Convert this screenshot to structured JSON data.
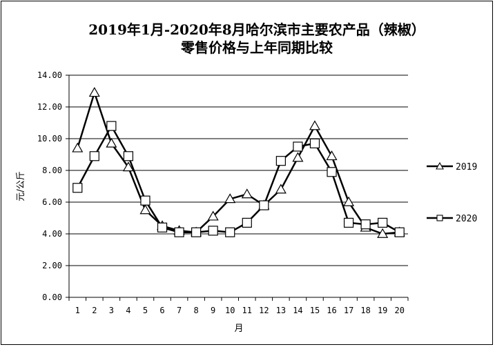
{
  "chart_data": {
    "type": "line",
    "title_line1": "2019年1月-2020年8月哈尔滨市主要农产品（辣椒）",
    "title_line2": "零售价格与上年同期比较",
    "xlabel": "月",
    "ylabel": "元/公斤",
    "x": [
      1,
      2,
      3,
      4,
      5,
      6,
      7,
      8,
      9,
      10,
      11,
      12,
      13,
      14,
      15,
      16,
      17,
      18,
      19,
      20
    ],
    "x_tick_labels": [
      "1",
      "2",
      "3",
      "4",
      "5",
      "6",
      "7",
      "8",
      "9",
      "10",
      "11",
      "12",
      "13",
      "14",
      "15",
      "16",
      "17",
      "18",
      "19",
      "20"
    ],
    "ylim": [
      0,
      14
    ],
    "y_tick_labels": [
      "0.00",
      "2.00",
      "4.00",
      "6.00",
      "8.00",
      "10.00",
      "12.00",
      "14.00"
    ],
    "y_ticks": [
      0,
      2,
      4,
      6,
      8,
      10,
      12,
      14
    ],
    "grid": "horizontal",
    "legend_position": "right",
    "series": [
      {
        "name": "2019",
        "marker": "triangle",
        "color": "#000000",
        "values": [
          9.4,
          12.9,
          9.7,
          8.2,
          5.5,
          4.5,
          4.2,
          4.1,
          5.1,
          6.2,
          6.5,
          5.8,
          6.8,
          8.8,
          10.8,
          8.9,
          6.0,
          4.4,
          4.0,
          4.1
        ]
      },
      {
        "name": "2020",
        "marker": "square",
        "color": "#000000",
        "values": [
          6.9,
          8.9,
          10.8,
          8.9,
          6.1,
          4.4,
          4.1,
          4.1,
          4.2,
          4.1,
          4.7,
          5.8,
          8.6,
          9.5,
          9.7,
          7.9,
          4.7,
          4.6,
          4.7,
          4.1
        ]
      }
    ]
  }
}
